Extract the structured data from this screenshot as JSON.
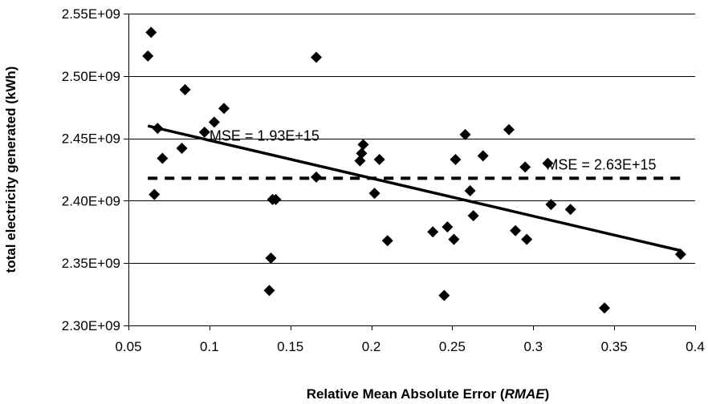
{
  "chart_data": {
    "type": "scatter",
    "title": "",
    "xlabel": "Relative Mean Absolute Error (",
    "xlabel_italic": "RMAE",
    "xlabel_suffix": ")",
    "ylabel": "total electricity generated (kWh)",
    "xlim": [
      0.05,
      0.4
    ],
    "ylim": [
      2300000000,
      2550000000
    ],
    "xticks": [
      0.05,
      0.1,
      0.15,
      0.2,
      0.25,
      0.3,
      0.35,
      0.4
    ],
    "xtick_labels": [
      "0.05",
      "0.1",
      "0.15",
      "0.2",
      "0.25",
      "0.3",
      "0.35",
      "0.4"
    ],
    "yticks": [
      2300000000,
      2350000000,
      2400000000,
      2450000000,
      2500000000,
      2550000000
    ],
    "ytick_labels": [
      "2.30E+09",
      "2.35E+09",
      "2.40E+09",
      "2.45E+09",
      "2.50E+09",
      "2.55E+09"
    ],
    "grid": "horizontal",
    "marker": "diamond",
    "marker_color": "#000000",
    "points": [
      {
        "x": 0.062,
        "y": 2516000000
      },
      {
        "x": 0.064,
        "y": 2535000000
      },
      {
        "x": 0.066,
        "y": 2405000000
      },
      {
        "x": 0.068,
        "y": 2458000000
      },
      {
        "x": 0.071,
        "y": 2434000000
      },
      {
        "x": 0.083,
        "y": 2442000000
      },
      {
        "x": 0.085,
        "y": 2489000000
      },
      {
        "x": 0.097,
        "y": 2455000000
      },
      {
        "x": 0.103,
        "y": 2463000000
      },
      {
        "x": 0.109,
        "y": 2474000000
      },
      {
        "x": 0.137,
        "y": 2328000000
      },
      {
        "x": 0.138,
        "y": 2354000000
      },
      {
        "x": 0.139,
        "y": 2401000000
      },
      {
        "x": 0.141,
        "y": 2401000000
      },
      {
        "x": 0.166,
        "y": 2515000000
      },
      {
        "x": 0.166,
        "y": 2419000000
      },
      {
        "x": 0.193,
        "y": 2432000000
      },
      {
        "x": 0.194,
        "y": 2438000000
      },
      {
        "x": 0.195,
        "y": 2445000000
      },
      {
        "x": 0.202,
        "y": 2406000000
      },
      {
        "x": 0.205,
        "y": 2433000000
      },
      {
        "x": 0.21,
        "y": 2368000000
      },
      {
        "x": 0.238,
        "y": 2375000000
      },
      {
        "x": 0.245,
        "y": 2324000000
      },
      {
        "x": 0.247,
        "y": 2379000000
      },
      {
        "x": 0.251,
        "y": 2369000000
      },
      {
        "x": 0.252,
        "y": 2433000000
      },
      {
        "x": 0.258,
        "y": 2453000000
      },
      {
        "x": 0.261,
        "y": 2408000000
      },
      {
        "x": 0.263,
        "y": 2388000000
      },
      {
        "x": 0.269,
        "y": 2436000000
      },
      {
        "x": 0.285,
        "y": 2457000000
      },
      {
        "x": 0.289,
        "y": 2376000000
      },
      {
        "x": 0.295,
        "y": 2427000000
      },
      {
        "x": 0.296,
        "y": 2369000000
      },
      {
        "x": 0.309,
        "y": 2430000000
      },
      {
        "x": 0.311,
        "y": 2397000000
      },
      {
        "x": 0.323,
        "y": 2393000000
      },
      {
        "x": 0.344,
        "y": 2314000000
      },
      {
        "x": 0.391,
        "y": 2357000000
      }
    ],
    "trend_line": {
      "x": [
        0.062,
        0.391
      ],
      "y": [
        2460000000,
        2360000000
      ],
      "style": "solid",
      "color": "#000000"
    },
    "mean_line": {
      "x": [
        0.062,
        0.391
      ],
      "y": [
        2418000000,
        2418000000
      ],
      "style": "dashed",
      "color": "#000000"
    },
    "annotations": [
      {
        "text": "MSE = 1.93E+15",
        "x": 0.1,
        "y": 2452000000
      },
      {
        "text": "MSE = 2.63E+15",
        "x": 0.308,
        "y": 2429000000
      }
    ]
  }
}
